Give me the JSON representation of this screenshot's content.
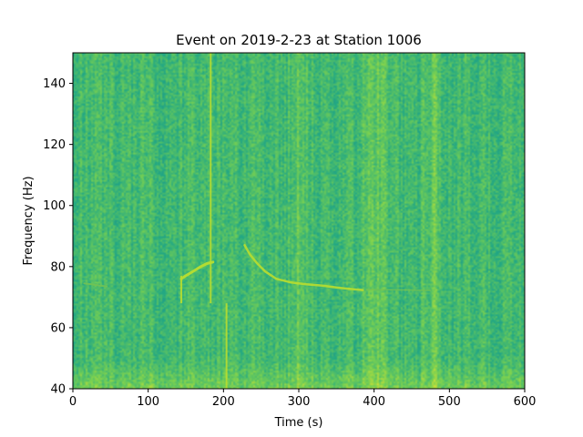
{
  "chart_data": {
    "type": "heatmap",
    "subtype": "spectrogram",
    "title": "Event on 2019-2-23 at Station 1006",
    "xlabel": "Time (s)",
    "ylabel": "Frequency (Hz)",
    "xlim": [
      0,
      600
    ],
    "ylim": [
      40,
      150
    ],
    "xticks": [
      0,
      100,
      200,
      300,
      400,
      500,
      600
    ],
    "yticks": [
      40,
      60,
      80,
      100,
      120,
      140
    ],
    "xtick_labels": [
      "0",
      "100",
      "200",
      "300",
      "400",
      "500",
      "600"
    ],
    "ytick_labels": [
      "40",
      "60",
      "80",
      "100",
      "120",
      "140"
    ],
    "grid": false,
    "colormap": "viridis",
    "colors": {
      "background_mid": "#3fb07a",
      "background_high": "#72c253",
      "feature": "#b9dd2f",
      "feature_bright": "#d2e21b"
    },
    "features": {
      "upsweep": {
        "time": [
          144,
          150,
          160,
          170,
          178,
          186
        ],
        "freq": [
          76,
          77,
          78.5,
          80,
          81,
          81.5
        ]
      },
      "downsweep": {
        "time": [
          228,
          235,
          245,
          255,
          270,
          290,
          310,
          330,
          355,
          385
        ],
        "freq": [
          87,
          84,
          81,
          78.5,
          76,
          74.8,
          74.2,
          73.8,
          73.0,
          72.3
        ]
      },
      "faint_trace_left": {
        "time": [
          15,
          25,
          35,
          45
        ],
        "freq": [
          74.5,
          74.2,
          73.8,
          73.5
        ]
      },
      "faint_trace_right": {
        "time": [
          390,
          420,
          450,
          475
        ],
        "freq": [
          72.5,
          72.4,
          72.3,
          72.2
        ]
      },
      "vertical_lines": [
        {
          "time": 183,
          "fmin": 68,
          "fmax": 150
        },
        {
          "time": 204,
          "fmin": 40,
          "fmax": 68
        },
        {
          "time": 144,
          "fmin": 68,
          "fmax": 77
        }
      ],
      "bright_bands": [
        {
          "time": 400,
          "width": 14
        },
        {
          "time": 480,
          "width": 10
        },
        {
          "time": 300,
          "width": 8
        }
      ]
    }
  }
}
